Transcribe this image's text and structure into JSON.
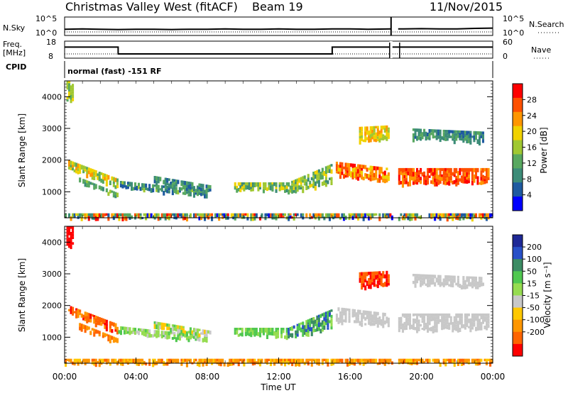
{
  "header": {
    "title": "Christmas Valley West (fitACF)",
    "beam": "Beam 19",
    "date": "11/Nov/2015"
  },
  "noise_panel": {
    "left_label": "N.Sky",
    "right_label": "N.Search",
    "left_ticks": [
      "10^5",
      "10^0"
    ],
    "right_ticks": [
      "10^5",
      "10^0"
    ]
  },
  "freq_panel": {
    "left_label_1": "Freq.",
    "left_label_2": "[MHz]",
    "right_label": "Nave",
    "left_ticks": [
      "18",
      "8"
    ],
    "right_ticks": [
      "60",
      "0"
    ]
  },
  "cpid": {
    "label": "CPID",
    "value": "normal (fast) -151 RF"
  },
  "colors": {
    "frame": "#000000",
    "power_scale": [
      "#0000ff",
      "#1e5aa0",
      "#3c8c78",
      "#58a860",
      "#a0c832",
      "#f0d200",
      "#ff9600",
      "#ff5000",
      "#ff0000"
    ],
    "velocity_scale": [
      "#1e2896",
      "#2850c8",
      "#3c8c64",
      "#50c850",
      "#96dc50",
      "#c8c8c8",
      "#ffc800",
      "#ff9600",
      "#ff6400",
      "#ff0000"
    ]
  },
  "chart_data": [
    {
      "type": "line",
      "name": "noise",
      "x": [
        0,
        1,
        2,
        3,
        4,
        5,
        6,
        7,
        8,
        9,
        10,
        11,
        12,
        13,
        14,
        15,
        16,
        17,
        18.3,
        18.7,
        19,
        20,
        21,
        22,
        23,
        24
      ],
      "values": [
        1.2,
        1.3,
        1.2,
        1.1,
        1.2,
        1.2,
        1.1,
        1.2,
        1.2,
        1.3,
        1.2,
        1.2,
        1.3,
        1.2,
        1.2,
        1.3,
        1.3,
        1.2,
        1.3,
        1.3,
        1.3,
        1.4,
        1.3,
        1.3,
        1.5,
        1.6
      ],
      "gap": [
        18.3,
        18.7
      ]
    },
    {
      "type": "line",
      "name": "frequency",
      "segments": [
        {
          "from": 0,
          "to": 3,
          "value": 14.5
        },
        {
          "from": 3,
          "to": 15,
          "value": 10.5
        },
        {
          "from": 15,
          "to": 24,
          "value": 14.5
        }
      ],
      "gap": [
        18.3,
        18.7
      ],
      "nave": 10.5
    },
    {
      "type": "heatmap",
      "name": "power",
      "xlabel": "",
      "ylabel": "Slant Range [km]",
      "xlim": [
        0,
        24
      ],
      "ylim": [
        180,
        4500
      ],
      "yticks": [
        "1000",
        "2000",
        "3000",
        "4000"
      ],
      "colorbar_label": "Power [dB]",
      "colorbar_ticks": [
        "4",
        "8",
        "12",
        "16",
        "20",
        "24",
        "28"
      ],
      "colorbar_range": [
        0,
        32
      ]
    },
    {
      "type": "heatmap",
      "name": "velocity",
      "xlabel": "Time UT",
      "ylabel": "Slant Range [km]",
      "xlim": [
        0,
        24
      ],
      "ylim": [
        180,
        4500
      ],
      "xticks": [
        "00:00",
        "04:00",
        "08:00",
        "12:00",
        "16:00",
        "20:00",
        "00:00"
      ],
      "yticks": [
        "1000",
        "2000",
        "3000",
        "4000"
      ],
      "colorbar_label": "Velocity [m s⁻¹]",
      "colorbar_ticks": [
        "200",
        "100",
        "50",
        "15",
        "-15",
        "-50",
        "-100",
        "-200"
      ]
    }
  ]
}
